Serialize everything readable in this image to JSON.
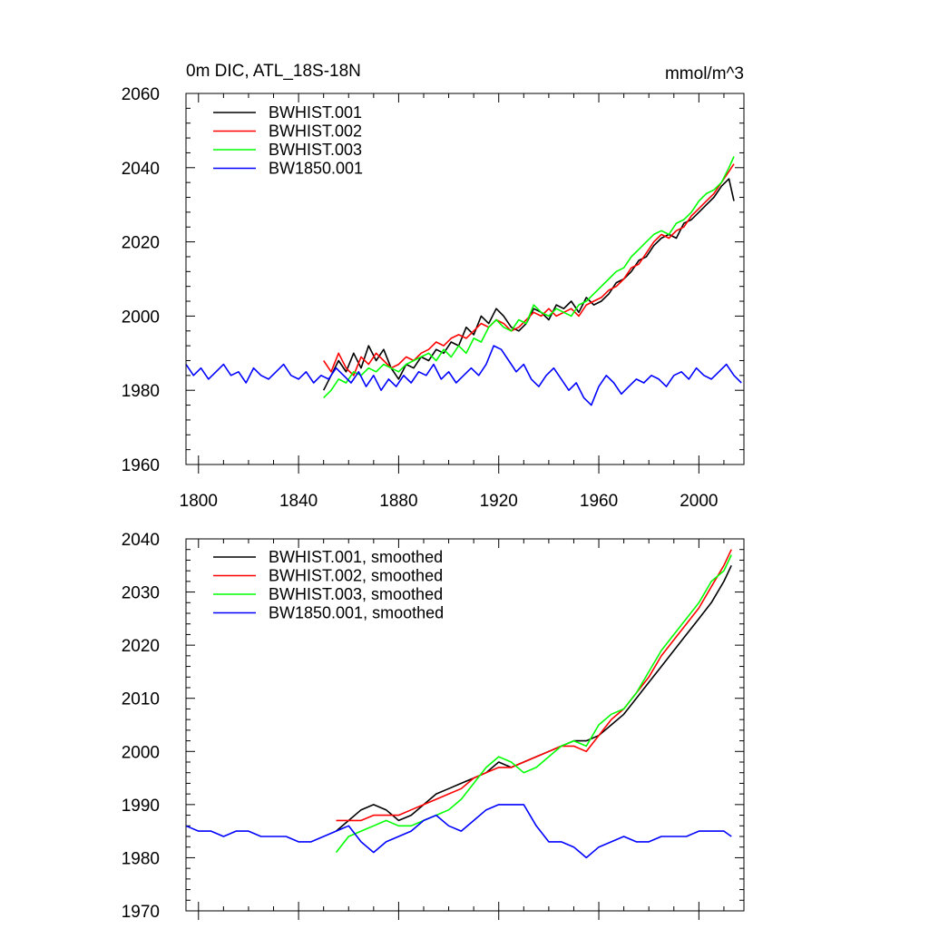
{
  "chart_data": [
    {
      "type": "line",
      "title_left": "0m DIC, ATL_18S-18N",
      "title_right": "mmol/m^3",
      "xlabel": "",
      "ylabel": "",
      "xlim": [
        1795,
        2018
      ],
      "ylim": [
        1960,
        2060
      ],
      "xticks": [
        1800,
        1840,
        1880,
        1920,
        1960,
        2000
      ],
      "yticks": [
        1960,
        1980,
        2000,
        2020,
        2040,
        2060
      ],
      "legend_position": "top-left",
      "series": [
        {
          "name": "BWHIST.001",
          "color": "#000000",
          "x": [
            1850,
            1853,
            1856,
            1859,
            1862,
            1865,
            1868,
            1871,
            1874,
            1877,
            1880,
            1883,
            1886,
            1889,
            1892,
            1895,
            1898,
            1901,
            1904,
            1907,
            1910,
            1913,
            1916,
            1919,
            1922,
            1925,
            1928,
            1931,
            1934,
            1937,
            1940,
            1943,
            1946,
            1949,
            1952,
            1955,
            1958,
            1961,
            1964,
            1967,
            1970,
            1973,
            1976,
            1979,
            1982,
            1985,
            1988,
            1991,
            1994,
            1997,
            2000,
            2003,
            2006,
            2009,
            2012,
            2014
          ],
          "values": [
            1980,
            1984,
            1988,
            1985,
            1990,
            1986,
            1992,
            1988,
            1991,
            1986,
            1983,
            1987,
            1986,
            1989,
            1988,
            1991,
            1990,
            1993,
            1992,
            1997,
            1995,
            2000,
            1998,
            2002,
            2000,
            1997,
            1996,
            1998,
            2002,
            2001,
            1999,
            2003,
            2002,
            2004,
            2001,
            2005,
            2003,
            2004,
            2006,
            2009,
            2010,
            2012,
            2015,
            2016,
            2019,
            2021,
            2022,
            2021,
            2025,
            2026,
            2028,
            2030,
            2032,
            2035,
            2037,
            2031
          ]
        },
        {
          "name": "BWHIST.002",
          "color": "#ff0000",
          "x": [
            1850,
            1853,
            1856,
            1859,
            1862,
            1865,
            1868,
            1871,
            1874,
            1877,
            1880,
            1883,
            1886,
            1889,
            1892,
            1895,
            1898,
            1901,
            1904,
            1907,
            1910,
            1913,
            1916,
            1919,
            1922,
            1925,
            1928,
            1931,
            1934,
            1937,
            1940,
            1943,
            1946,
            1949,
            1952,
            1955,
            1958,
            1961,
            1964,
            1967,
            1970,
            1973,
            1976,
            1979,
            1982,
            1985,
            1988,
            1991,
            1994,
            1997,
            2000,
            2003,
            2006,
            2009,
            2012,
            2014
          ],
          "values": [
            1988,
            1985,
            1990,
            1986,
            1984,
            1989,
            1987,
            1990,
            1988,
            1986,
            1987,
            1989,
            1988,
            1990,
            1991,
            1993,
            1992,
            1994,
            1995,
            1994,
            1996,
            1998,
            1997,
            1999,
            1998,
            1996,
            1997,
            1999,
            2001,
            2000,
            2002,
            2000,
            2001,
            2002,
            2000,
            2003,
            2004,
            2005,
            2007,
            2008,
            2010,
            2013,
            2014,
            2017,
            2020,
            2022,
            2021,
            2023,
            2024,
            2027,
            2029,
            2031,
            2033,
            2036,
            2039,
            2041
          ]
        },
        {
          "name": "BWHIST.003",
          "color": "#00ff00",
          "x": [
            1850,
            1853,
            1856,
            1859,
            1862,
            1865,
            1868,
            1871,
            1874,
            1877,
            1880,
            1883,
            1886,
            1889,
            1892,
            1895,
            1898,
            1901,
            1904,
            1907,
            1910,
            1913,
            1916,
            1919,
            1922,
            1925,
            1928,
            1931,
            1934,
            1937,
            1940,
            1943,
            1946,
            1949,
            1952,
            1955,
            1958,
            1961,
            1964,
            1967,
            1970,
            1973,
            1976,
            1979,
            1982,
            1985,
            1988,
            1991,
            1994,
            1997,
            2000,
            2003,
            2006,
            2009,
            2012,
            2014
          ],
          "values": [
            1978,
            1980,
            1983,
            1982,
            1985,
            1984,
            1986,
            1985,
            1987,
            1986,
            1985,
            1987,
            1988,
            1989,
            1990,
            1988,
            1991,
            1989,
            1992,
            1990,
            1994,
            1993,
            1997,
            1999,
            1997,
            1996,
            1999,
            1998,
            2003,
            2001,
            2000,
            2002,
            2001,
            2000,
            2003,
            2004,
            2006,
            2008,
            2010,
            2012,
            2013,
            2016,
            2018,
            2020,
            2022,
            2023,
            2022,
            2025,
            2026,
            2028,
            2031,
            2033,
            2034,
            2036,
            2040,
            2043
          ]
        },
        {
          "name": "BW1850.001",
          "color": "#0000ff",
          "x": [
            1795,
            1798,
            1801,
            1804,
            1807,
            1810,
            1813,
            1816,
            1819,
            1822,
            1825,
            1828,
            1831,
            1834,
            1837,
            1840,
            1843,
            1846,
            1849,
            1852,
            1855,
            1858,
            1861,
            1864,
            1867,
            1870,
            1873,
            1876,
            1879,
            1882,
            1885,
            1888,
            1891,
            1894,
            1897,
            1900,
            1903,
            1906,
            1909,
            1912,
            1915,
            1918,
            1921,
            1924,
            1927,
            1930,
            1933,
            1936,
            1939,
            1942,
            1945,
            1948,
            1951,
            1954,
            1957,
            1960,
            1963,
            1966,
            1969,
            1972,
            1975,
            1978,
            1981,
            1984,
            1987,
            1990,
            1993,
            1996,
            1999,
            2002,
            2005,
            2008,
            2011,
            2014,
            2017
          ],
          "values": [
            1987,
            1984,
            1986,
            1983,
            1985,
            1987,
            1984,
            1985,
            1982,
            1986,
            1984,
            1983,
            1985,
            1987,
            1984,
            1983,
            1985,
            1982,
            1984,
            1983,
            1986,
            1984,
            1982,
            1985,
            1981,
            1984,
            1980,
            1983,
            1981,
            1984,
            1982,
            1985,
            1984,
            1987,
            1983,
            1985,
            1982,
            1984,
            1986,
            1984,
            1987,
            1992,
            1991,
            1988,
            1985,
            1987,
            1983,
            1981,
            1984,
            1986,
            1983,
            1980,
            1982,
            1978,
            1976,
            1981,
            1984,
            1982,
            1979,
            1981,
            1983,
            1982,
            1984,
            1983,
            1981,
            1984,
            1985,
            1983,
            1986,
            1984,
            1983,
            1985,
            1987,
            1984,
            1982
          ]
        }
      ]
    },
    {
      "type": "line",
      "title": "",
      "xlabel": "",
      "ylabel": "",
      "xlim": [
        1795,
        2018
      ],
      "ylim": [
        1970,
        2040
      ],
      "xticks": [
        1800,
        1840,
        1880,
        1920,
        1960,
        2000
      ],
      "yticks": [
        1970,
        1980,
        1990,
        2000,
        2010,
        2020,
        2030,
        2040
      ],
      "legend_position": "top-left",
      "series": [
        {
          "name": "BWHIST.001, smoothed",
          "color": "#000000",
          "x": [
            1855,
            1860,
            1865,
            1870,
            1875,
            1880,
            1885,
            1890,
            1895,
            1900,
            1905,
            1910,
            1915,
            1920,
            1925,
            1930,
            1935,
            1940,
            1945,
            1950,
            1955,
            1960,
            1965,
            1970,
            1975,
            1980,
            1985,
            1990,
            1995,
            2000,
            2005,
            2010,
            2013
          ],
          "values": [
            1985,
            1987,
            1989,
            1990,
            1989,
            1987,
            1988,
            1990,
            1992,
            1993,
            1994,
            1995,
            1996,
            1998,
            1997,
            1998,
            1999,
            2000,
            2001,
            2002,
            2002,
            2003,
            2005,
            2007,
            2010,
            2013,
            2016,
            2019,
            2022,
            2025,
            2028,
            2032,
            2035
          ]
        },
        {
          "name": "BWHIST.002, smoothed",
          "color": "#ff0000",
          "x": [
            1855,
            1860,
            1865,
            1870,
            1875,
            1880,
            1885,
            1890,
            1895,
            1900,
            1905,
            1910,
            1915,
            1920,
            1925,
            1930,
            1935,
            1940,
            1945,
            1950,
            1955,
            1960,
            1965,
            1970,
            1975,
            1980,
            1985,
            1990,
            1995,
            2000,
            2005,
            2010,
            2013
          ],
          "values": [
            1987,
            1987,
            1987,
            1988,
            1988,
            1988,
            1989,
            1990,
            1991,
            1992,
            1993,
            1995,
            1996,
            1997,
            1997,
            1998,
            1999,
            2000,
            2001,
            2001,
            2000,
            2003,
            2006,
            2008,
            2011,
            2014,
            2018,
            2021,
            2024,
            2027,
            2031,
            2035,
            2038
          ]
        },
        {
          "name": "BWHIST.003, smoothed",
          "color": "#00ff00",
          "x": [
            1855,
            1860,
            1865,
            1870,
            1875,
            1880,
            1885,
            1890,
            1895,
            1900,
            1905,
            1910,
            1915,
            1920,
            1925,
            1930,
            1935,
            1940,
            1945,
            1950,
            1955,
            1960,
            1965,
            1970,
            1975,
            1980,
            1985,
            1990,
            1995,
            2000,
            2005,
            2010,
            2013
          ],
          "values": [
            1981,
            1984,
            1985,
            1986,
            1987,
            1986,
            1986,
            1987,
            1988,
            1989,
            1991,
            1994,
            1997,
            1999,
            1998,
            1996,
            1997,
            1999,
            2001,
            2002,
            2001,
            2005,
            2007,
            2008,
            2011,
            2015,
            2019,
            2022,
            2025,
            2028,
            2032,
            2034,
            2037
          ]
        },
        {
          "name": "BW1850.001, smoothed",
          "color": "#0000ff",
          "x": [
            1795,
            1800,
            1805,
            1810,
            1815,
            1820,
            1825,
            1830,
            1835,
            1840,
            1845,
            1850,
            1855,
            1860,
            1865,
            1870,
            1875,
            1880,
            1885,
            1890,
            1895,
            1900,
            1905,
            1910,
            1915,
            1920,
            1925,
            1930,
            1935,
            1940,
            1945,
            1950,
            1955,
            1960,
            1965,
            1970,
            1975,
            1980,
            1985,
            1990,
            1995,
            2000,
            2005,
            2010,
            2013
          ],
          "values": [
            1986,
            1985,
            1985,
            1984,
            1985,
            1985,
            1984,
            1984,
            1984,
            1983,
            1983,
            1984,
            1985,
            1986,
            1983,
            1981,
            1983,
            1984,
            1985,
            1987,
            1988,
            1986,
            1985,
            1987,
            1989,
            1990,
            1990,
            1990,
            1986,
            1983,
            1983,
            1982,
            1980,
            1982,
            1983,
            1984,
            1983,
            1983,
            1984,
            1984,
            1984,
            1985,
            1985,
            1985,
            1984
          ]
        }
      ]
    }
  ]
}
